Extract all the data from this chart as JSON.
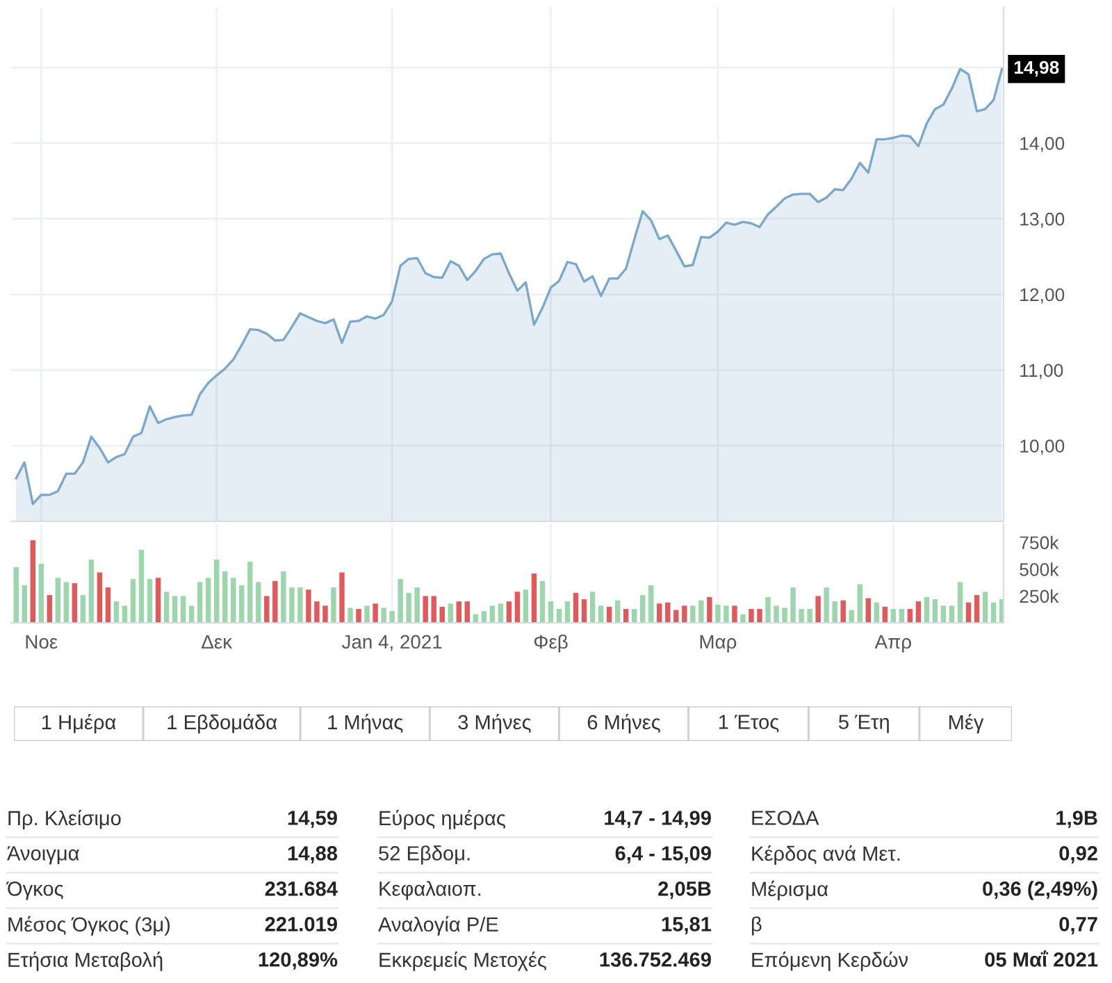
{
  "chart_data": [
    {
      "type": "area",
      "tick_labels": "y",
      "grid": true,
      "categories": [
        null,
        null,
        null,
        null,
        null,
        null,
        null,
        null,
        null,
        null,
        null,
        null,
        null,
        null,
        null,
        null,
        null,
        null,
        null,
        null,
        null,
        null,
        null,
        null,
        null,
        null,
        null,
        null,
        null,
        null,
        null,
        null,
        null,
        null,
        null,
        null,
        null,
        null,
        null,
        null,
        null,
        null,
        null,
        null,
        null,
        null,
        null,
        null,
        null,
        null,
        null,
        null,
        null,
        null,
        null,
        null,
        null,
        null,
        null,
        null,
        null,
        null,
        null,
        null,
        null,
        null,
        null,
        null,
        null,
        null,
        null,
        null,
        null,
        null,
        null,
        null,
        null,
        null,
        null,
        null,
        null,
        null,
        null,
        null,
        null,
        null,
        null,
        null,
        null,
        null,
        null,
        null,
        null,
        null,
        null,
        null,
        null,
        null,
        null,
        null,
        null,
        null,
        null,
        null,
        null,
        null,
        null,
        null,
        null,
        null,
        null,
        null,
        null,
        null,
        null,
        null,
        null,
        null,
        null
      ],
      "series": [
        {
          "color": "#7ba7cc",
          "values": [
            9.57,
            9.78,
            9.23,
            9.35,
            9.35,
            9.4,
            9.63,
            9.63,
            9.78,
            10.12,
            9.97,
            9.78,
            9.85,
            9.89,
            10.12,
            10.17,
            10.52,
            10.3,
            10.35,
            10.38,
            10.4,
            10.41,
            10.68,
            10.83,
            10.93,
            11.02,
            11.14,
            11.33,
            11.54,
            11.53,
            11.48,
            11.39,
            11.4,
            11.57,
            11.75,
            11.7,
            11.65,
            11.62,
            11.67,
            11.36,
            11.64,
            11.65,
            11.71,
            11.68,
            11.73,
            11.91,
            12.38,
            12.47,
            12.48,
            12.28,
            12.23,
            12.22,
            12.44,
            12.38,
            12.19,
            12.31,
            12.47,
            12.53,
            12.54,
            12.28,
            12.05,
            12.16,
            11.6,
            11.82,
            12.09,
            12.18,
            12.43,
            12.4,
            12.17,
            12.24,
            11.98,
            12.21,
            12.21,
            12.34,
            12.73,
            13.1,
            12.98,
            12.73,
            12.78,
            12.58,
            12.37,
            12.39,
            12.76,
            12.75,
            12.83,
            12.95,
            12.92,
            12.96,
            12.94,
            12.89,
            13.06,
            13.16,
            13.27,
            13.32,
            13.33,
            13.33,
            13.22,
            13.28,
            13.39,
            13.38,
            13.53,
            13.74,
            13.61,
            14.05,
            14.05,
            14.07,
            14.1,
            14.09,
            13.96,
            14.26,
            14.45,
            14.51,
            14.72,
            14.98,
            14.91,
            14.42,
            14.45,
            14.57,
            14.98
          ],
          "value_labels": [
            null,
            null,
            null,
            null,
            null,
            null,
            null,
            null,
            null,
            null,
            null,
            null,
            null,
            null,
            null,
            null,
            null,
            null,
            null,
            null,
            null,
            null,
            null,
            null,
            null,
            null,
            null,
            null,
            null,
            null,
            null,
            null,
            null,
            null,
            null,
            null,
            null,
            null,
            null,
            null,
            null,
            null,
            null,
            null,
            null,
            null,
            null,
            null,
            null,
            null,
            null,
            null,
            null,
            null,
            null,
            null,
            null,
            null,
            null,
            null,
            null,
            null,
            null,
            null,
            null,
            null,
            null,
            null,
            null,
            null,
            null,
            null,
            null,
            null,
            null,
            null,
            null,
            null,
            null,
            null,
            null,
            null,
            null,
            null,
            null,
            null,
            null,
            null,
            null,
            null,
            null,
            null,
            null,
            null,
            null,
            null,
            null,
            null,
            null,
            null,
            null,
            null,
            null,
            null,
            null,
            null,
            null,
            null,
            null,
            null,
            null,
            null,
            null,
            null,
            null,
            null,
            null,
            null,
            "14,98"
          ]
        }
      ],
      "ylim": [
        9.0,
        15.8
      ],
      "yticks": [
        {
          "value": 10,
          "label": "10,00"
        },
        {
          "value": 11,
          "label": "11,00"
        },
        {
          "value": 12,
          "label": "12,00"
        },
        {
          "value": 13,
          "label": "13,00"
        },
        {
          "value": 14,
          "label": "14,00"
        },
        {
          "value": 15,
          "label": null
        }
      ]
    },
    {
      "type": "bar",
      "grid": "x",
      "categories": [
        null,
        null,
        null,
        "Νοε",
        null,
        null,
        null,
        null,
        null,
        null,
        null,
        null,
        null,
        null,
        null,
        null,
        null,
        null,
        null,
        null,
        null,
        null,
        null,
        null,
        "Δεκ",
        null,
        null,
        null,
        null,
        null,
        null,
        null,
        null,
        null,
        null,
        null,
        null,
        null,
        null,
        null,
        null,
        null,
        null,
        null,
        null,
        "Jan 4, 2021",
        null,
        null,
        null,
        null,
        null,
        null,
        null,
        null,
        null,
        null,
        null,
        null,
        null,
        null,
        null,
        null,
        null,
        null,
        "Φεβ",
        null,
        null,
        null,
        null,
        null,
        null,
        null,
        null,
        null,
        null,
        null,
        null,
        null,
        null,
        null,
        null,
        null,
        null,
        null,
        "Μαρ",
        null,
        null,
        null,
        null,
        null,
        null,
        null,
        null,
        null,
        null,
        null,
        null,
        null,
        null,
        null,
        null,
        null,
        null,
        null,
        null,
        "Απρ",
        null,
        null,
        null,
        null,
        null,
        null,
        null,
        null,
        null,
        null,
        null,
        null,
        null
      ],
      "values": [
        520000,
        350000,
        770000,
        550000,
        260000,
        420000,
        380000,
        370000,
        260000,
        590000,
        470000,
        330000,
        200000,
        160000,
        410000,
        680000,
        410000,
        420000,
        290000,
        250000,
        250000,
        160000,
        380000,
        420000,
        590000,
        480000,
        420000,
        350000,
        570000,
        380000,
        250000,
        390000,
        480000,
        330000,
        330000,
        310000,
        200000,
        160000,
        330000,
        470000,
        140000,
        130000,
        160000,
        180000,
        140000,
        110000,
        410000,
        280000,
        330000,
        250000,
        250000,
        150000,
        180000,
        200000,
        200000,
        80000,
        110000,
        160000,
        180000,
        200000,
        290000,
        310000,
        460000,
        390000,
        200000,
        130000,
        200000,
        280000,
        220000,
        290000,
        160000,
        150000,
        210000,
        130000,
        130000,
        260000,
        350000,
        180000,
        190000,
        120000,
        160000,
        160000,
        210000,
        240000,
        170000,
        160000,
        160000,
        80000,
        130000,
        130000,
        240000,
        160000,
        140000,
        330000,
        130000,
        130000,
        250000,
        330000,
        200000,
        210000,
        120000,
        360000,
        230000,
        190000,
        150000,
        130000,
        130000,
        130000,
        200000,
        240000,
        220000,
        160000,
        160000,
        380000,
        190000,
        260000,
        290000,
        190000,
        220000
      ],
      "colors": [
        "#9dd6ad",
        "#9dd6ad",
        "#e05a5c",
        "#9dd6ad",
        "#e05a5c",
        "#9dd6ad",
        "#9dd6ad",
        "#e05a5c",
        "#9dd6ad",
        "#9dd6ad",
        "#e05a5c",
        "#e05a5c",
        "#9dd6ad",
        "#9dd6ad",
        "#9dd6ad",
        "#9dd6ad",
        "#9dd6ad",
        "#e05a5c",
        "#9dd6ad",
        "#9dd6ad",
        "#9dd6ad",
        "#9dd6ad",
        "#9dd6ad",
        "#9dd6ad",
        "#9dd6ad",
        "#9dd6ad",
        "#9dd6ad",
        "#9dd6ad",
        "#9dd6ad",
        "#9dd6ad",
        "#e05a5c",
        "#e05a5c",
        "#9dd6ad",
        "#9dd6ad",
        "#9dd6ad",
        "#e05a5c",
        "#e05a5c",
        "#e05a5c",
        "#9dd6ad",
        "#e05a5c",
        "#9dd6ad",
        "#e05a5c",
        "#9dd6ad",
        "#e05a5c",
        "#9dd6ad",
        "#9dd6ad",
        "#9dd6ad",
        "#9dd6ad",
        "#9dd6ad",
        "#e05a5c",
        "#e05a5c",
        "#e05a5c",
        "#9dd6ad",
        "#e05a5c",
        "#e05a5c",
        "#9dd6ad",
        "#9dd6ad",
        "#9dd6ad",
        "#9dd6ad",
        "#e05a5c",
        "#e05a5c",
        "#9dd6ad",
        "#e05a5c",
        "#9dd6ad",
        "#9dd6ad",
        "#9dd6ad",
        "#9dd6ad",
        "#e05a5c",
        "#e05a5c",
        "#9dd6ad",
        "#9dd6ad",
        "#e05a5c",
        "#9dd6ad",
        "#e05a5c",
        "#9dd6ad",
        "#9dd6ad",
        "#9dd6ad",
        "#e05a5c",
        "#e05a5c",
        "#e05a5c",
        "#e05a5c",
        "#9dd6ad",
        "#9dd6ad",
        "#e05a5c",
        "#9dd6ad",
        "#9dd6ad",
        "#e05a5c",
        "#9dd6ad",
        "#e05a5c",
        "#e05a5c",
        "#9dd6ad",
        "#9dd6ad",
        "#9dd6ad",
        "#9dd6ad",
        "#9dd6ad",
        "#9dd6ad",
        "#e05a5c",
        "#9dd6ad",
        "#9dd6ad",
        "#e05a5c",
        "#9dd6ad",
        "#9dd6ad",
        "#e05a5c",
        "#9dd6ad",
        "#e05a5c",
        "#9dd6ad",
        "#9dd6ad",
        "#e05a5c",
        "#e05a5c",
        "#9dd6ad",
        "#9dd6ad",
        "#9dd6ad",
        "#9dd6ad",
        "#9dd6ad",
        "#e05a5c",
        "#e05a5c",
        "#9dd6ad",
        "#9dd6ad",
        "#9dd6ad"
      ],
      "ylim": [
        0,
        920000
      ],
      "yticks": [
        {
          "value": 250000,
          "label": "250k"
        },
        {
          "value": 500000,
          "label": "500k"
        },
        {
          "value": 750000,
          "label": "750k"
        }
      ]
    },
    {
      "type": "other",
      "categories": [
        "1 Ημέρα",
        "1 Εβδομάδα",
        "1 Μήνας",
        "3 Μήνες",
        "6 Μήνες",
        "1 Έτος",
        "5 Έτη",
        "Μέγ"
      ]
    },
    {
      "type": "other",
      "annotations": [
        "Πρ. Κλείσιμο",
        "14,59",
        "Εύρος ημέρας",
        "14,7 - 14,99",
        "ΕΣΟΔΑ",
        "1,9B",
        "Άνοιγμα",
        "14,88",
        "52 Εβδομ.",
        "6,4 - 15,09",
        "Κέρδος ανά Μετ.",
        "0,92",
        "Όγκος",
        "231.684",
        "Κεφαλαιοπ.",
        "2,05B",
        "Μέρισμα",
        "0,36 (2,49%)",
        "Μέσος Όγκος (3μ)",
        "221.019",
        "Αναλογία P/E",
        "15,81",
        "β",
        "0,77",
        "Ετήσια Μεταβολή",
        "120,89%",
        "Εκκρεμείς Μετοχές",
        "136.752.469",
        "Επόμενη Κερδών",
        "05 Μαΐ 2021"
      ]
    }
  ]
}
